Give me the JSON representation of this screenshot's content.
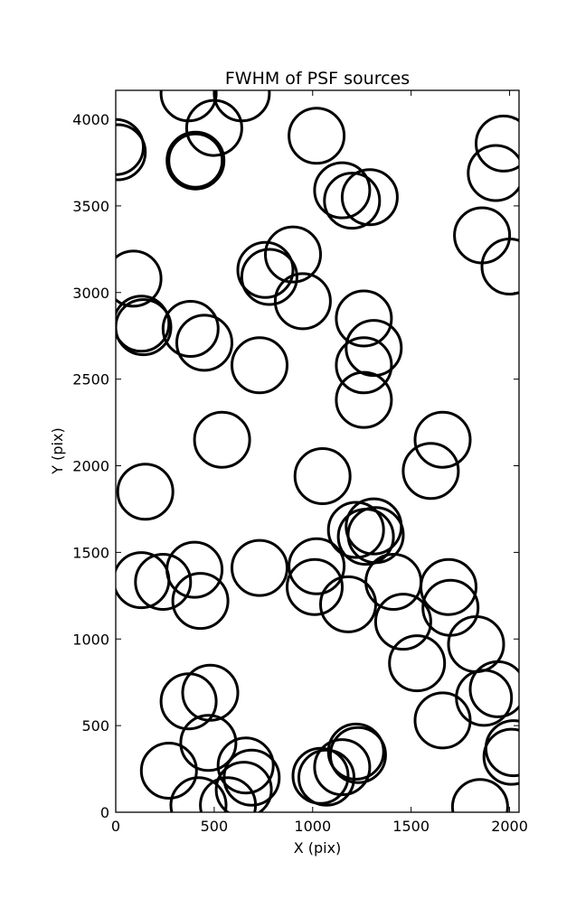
{
  "chart_data": {
    "type": "scatter",
    "title": "FWHM of PSF sources",
    "xlabel": "X (pix)",
    "ylabel": "Y (pix)",
    "xlim": [
      0,
      2048
    ],
    "ylim": [
      0,
      4167
    ],
    "xticks": [
      0,
      500,
      1000,
      1500,
      2000
    ],
    "yticks": [
      0,
      500,
      1000,
      1500,
      2000,
      2500,
      3000,
      3500,
      4000
    ],
    "grid": false,
    "legend": "none",
    "marker": "open-circle",
    "circle_radius_pix": 140,
    "colors": {
      "default": "#000000",
      "highlight": "#ff00ff"
    },
    "highlighted": [
      405,
      3762
    ],
    "sources": [
      [
        0,
        3840
      ],
      [
        10,
        3810
      ],
      [
        370,
        4150
      ],
      [
        640,
        4150
      ],
      [
        500,
        3950
      ],
      [
        1020,
        3905
      ],
      [
        1970,
        3860
      ],
      [
        1930,
        3690
      ],
      [
        1150,
        3590
      ],
      [
        1200,
        3530
      ],
      [
        1290,
        3550
      ],
      [
        1860,
        3330
      ],
      [
        2000,
        3150
      ],
      [
        90,
        3080
      ],
      [
        900,
        3220
      ],
      [
        760,
        3130
      ],
      [
        780,
        3090
      ],
      [
        950,
        2950
      ],
      [
        130,
        2820
      ],
      [
        140,
        2800
      ],
      [
        380,
        2790
      ],
      [
        450,
        2710
      ],
      [
        1260,
        2850
      ],
      [
        1310,
        2680
      ],
      [
        1260,
        2580
      ],
      [
        730,
        2580
      ],
      [
        1260,
        2380
      ],
      [
        540,
        2150
      ],
      [
        1660,
        2150
      ],
      [
        1600,
        1970
      ],
      [
        1050,
        1940
      ],
      [
        150,
        1850
      ],
      [
        1310,
        1650
      ],
      [
        1220,
        1630
      ],
      [
        1270,
        1590
      ],
      [
        1320,
        1600
      ],
      [
        730,
        1410
      ],
      [
        1020,
        1420
      ],
      [
        1010,
        1300
      ],
      [
        400,
        1400
      ],
      [
        130,
        1340
      ],
      [
        240,
        1330
      ],
      [
        430,
        1220
      ],
      [
        1410,
        1330
      ],
      [
        1180,
        1200
      ],
      [
        1690,
        1300
      ],
      [
        1700,
        1180
      ],
      [
        1460,
        1100
      ],
      [
        1530,
        860
      ],
      [
        1830,
        970
      ],
      [
        1940,
        710
      ],
      [
        1870,
        660
      ],
      [
        370,
        640
      ],
      [
        480,
        690
      ],
      [
        470,
        400
      ],
      [
        1660,
        530
      ],
      [
        270,
        240
      ],
      [
        660,
        270
      ],
      [
        690,
        200
      ],
      [
        650,
        130
      ],
      [
        570,
        40
      ],
      [
        420,
        40
      ],
      [
        1040,
        210
      ],
      [
        1070,
        200
      ],
      [
        1150,
        260
      ],
      [
        1220,
        350
      ],
      [
        1230,
        330
      ],
      [
        2020,
        370
      ],
      [
        2010,
        320
      ],
      [
        1850,
        30
      ]
    ]
  }
}
